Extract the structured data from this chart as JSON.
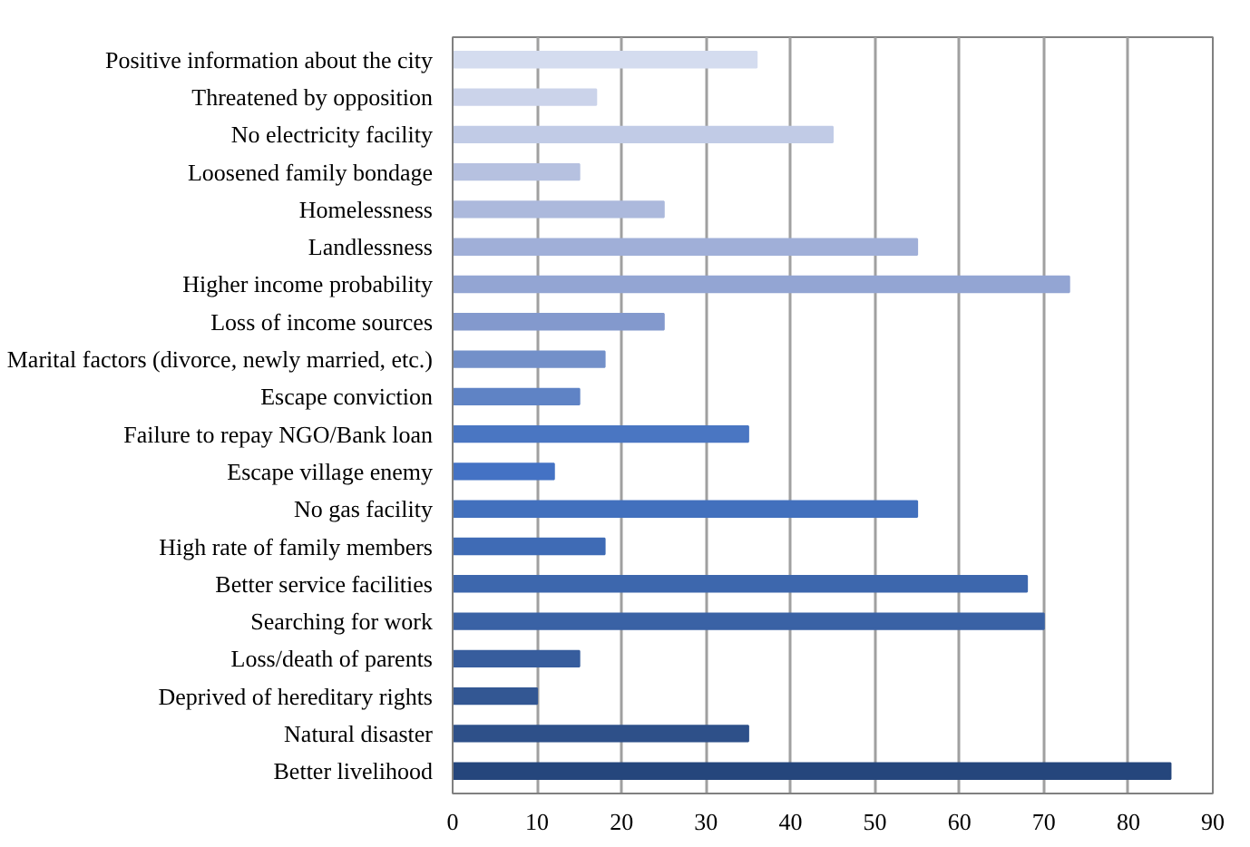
{
  "chart_data": {
    "type": "bar",
    "orientation": "horizontal",
    "categories": [
      "Positive information about the city",
      "Threatened by opposition",
      "No electricity facility",
      "Loosened family bondage",
      "Homelessness",
      "Landlessness",
      "Higher income probability",
      "Loss of income sources",
      "Marital factors (divorce, newly married, etc.)",
      "Escape conviction",
      "Failure to repay NGO/Bank loan",
      "Escape village enemy",
      "No gas facility",
      "High rate of family members",
      "Better service facilities",
      "Searching for work",
      "Loss/death of parents",
      "Deprived of hereditary rights",
      "Natural disaster",
      "Better livelihood"
    ],
    "values": [
      36,
      17,
      45,
      15,
      25,
      55,
      73,
      25,
      18,
      15,
      35,
      12,
      55,
      18,
      68,
      70,
      15,
      10,
      35,
      85
    ],
    "colors": [
      "#d4dcef",
      "#cbd3ea",
      "#c1cbe6",
      "#b6c1e0",
      "#acb9dc",
      "#a0afd8",
      "#93a5d3",
      "#8399cd",
      "#7390c9",
      "#5f83c5",
      "#4a76c2",
      "#4472c4",
      "#4270bd",
      "#3f6bb5",
      "#3d67ad",
      "#3a62a5",
      "#375d9d",
      "#335793",
      "#2e5089",
      "#25467c"
    ],
    "xlim": [
      0,
      90
    ],
    "xticks": [
      0,
      10,
      20,
      30,
      40,
      50,
      60,
      70,
      80,
      90
    ],
    "grid": "x"
  }
}
